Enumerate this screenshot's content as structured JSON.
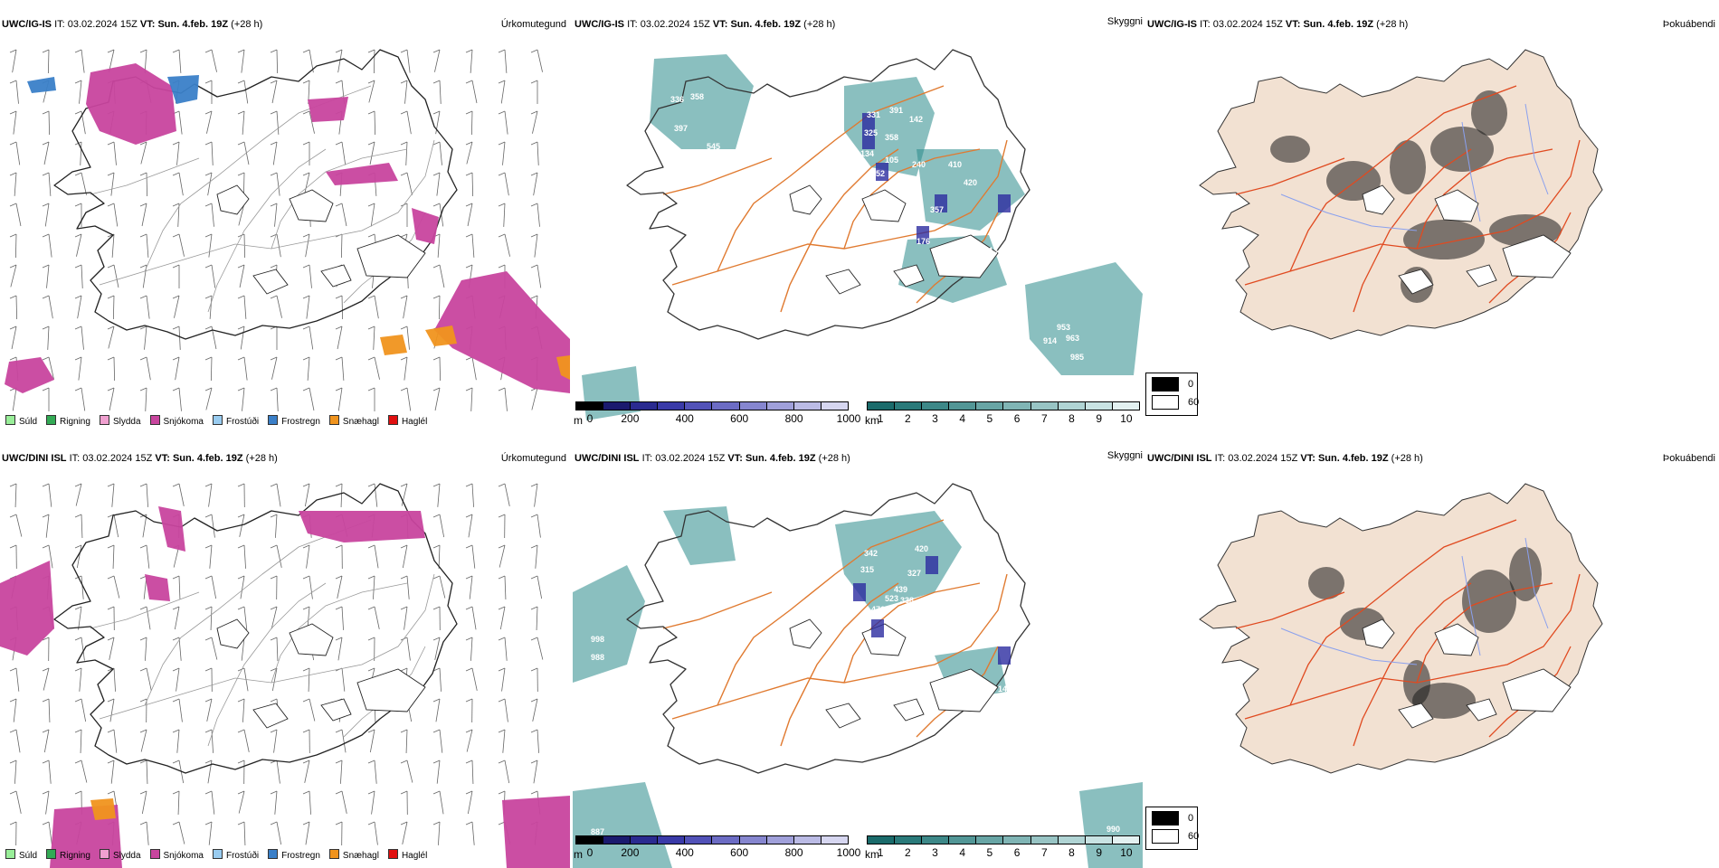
{
  "rows": [
    {
      "model": "UWC/IG-IS",
      "init_prefix": "IT:",
      "init": "03.02.2024 15Z",
      "valid_prefix": "VT:",
      "valid": "Sun. 4.feb. 19Z",
      "lead": "(+28 h)",
      "precip_title": "Úrkomutegund",
      "cloud_title": "Skyggni",
      "fog_title": "Þokuábendi",
      "cloud_labels": [
        "358",
        "336",
        "397",
        "545",
        "331",
        "391",
        "142",
        "325",
        "358",
        "134",
        "105",
        "452",
        "240",
        "568",
        "410",
        "420",
        "357",
        "176",
        "410",
        "177",
        "313",
        "953",
        "914",
        "963",
        "985"
      ]
    },
    {
      "model": "UWC/DINI ISL",
      "init_prefix": "IT:",
      "init": "03.02.2024 15Z",
      "valid_prefix": "VT:",
      "valid": "Sun. 4.feb. 19Z",
      "lead": "(+28 h)",
      "precip_title": "Úrkomutegund",
      "cloud_title": "Skyggni",
      "fog_title": "Þokuábendi",
      "cloud_labels": [
        "342",
        "420",
        "315",
        "327",
        "523",
        "439",
        "338",
        "476",
        "621",
        "298",
        "998",
        "988",
        "143",
        "964",
        "887",
        "990"
      ]
    }
  ],
  "precip_legend": [
    {
      "label": "Súld",
      "color": "#99ee99"
    },
    {
      "label": "Rigning",
      "color": "#33aa55"
    },
    {
      "label": "Slydda",
      "color": "#f0a0d0"
    },
    {
      "label": "Snjókoma",
      "color": "#c8459e"
    },
    {
      "label": "Frostúði",
      "color": "#99ccf0"
    },
    {
      "label": "Frostregn",
      "color": "#3a7fc8"
    },
    {
      "label": "Snæhagl",
      "color": "#f0941e"
    },
    {
      "label": "Haglél",
      "color": "#e01010"
    }
  ],
  "cloud_base_scale": {
    "unit": "m",
    "ticks": [
      "0",
      "200",
      "400",
      "600",
      "800",
      "1000"
    ],
    "colors": [
      "#000000",
      "#1a1a6e",
      "#2a2a90",
      "#3a3aa8",
      "#5252b8",
      "#6c6cc4",
      "#8686cf",
      "#a0a0da",
      "#bbbbe5",
      "#d6d6f0"
    ]
  },
  "visibility_scale": {
    "unit": "km",
    "ticks": [
      "1",
      "2",
      "3",
      "4",
      "5",
      "6",
      "7",
      "8",
      "9",
      "10"
    ],
    "colors": [
      "#1b6b6b",
      "#2a7a7a",
      "#3d8888",
      "#529696",
      "#68a5a5",
      "#80b5b5",
      "#98c4c4",
      "#b0d4d4",
      "#c9e3e3",
      "#e3f1f1"
    ]
  },
  "fog_scale": [
    {
      "label": "0",
      "color": "#000000"
    },
    {
      "label": "60",
      "color": "#ffffff"
    }
  ],
  "colors": {
    "snow": "#c8459e",
    "freezing_rain": "#3a7fc8",
    "ice_pellets": "#f0941e",
    "cloud_teal": "#2a8a8a",
    "cloud_base_blue": "#2c2ca0",
    "roads": "#e07a30",
    "fog_land": "#f2e1d2",
    "rivers": "#8aa0ee",
    "fog_roads": "#e04a20"
  }
}
